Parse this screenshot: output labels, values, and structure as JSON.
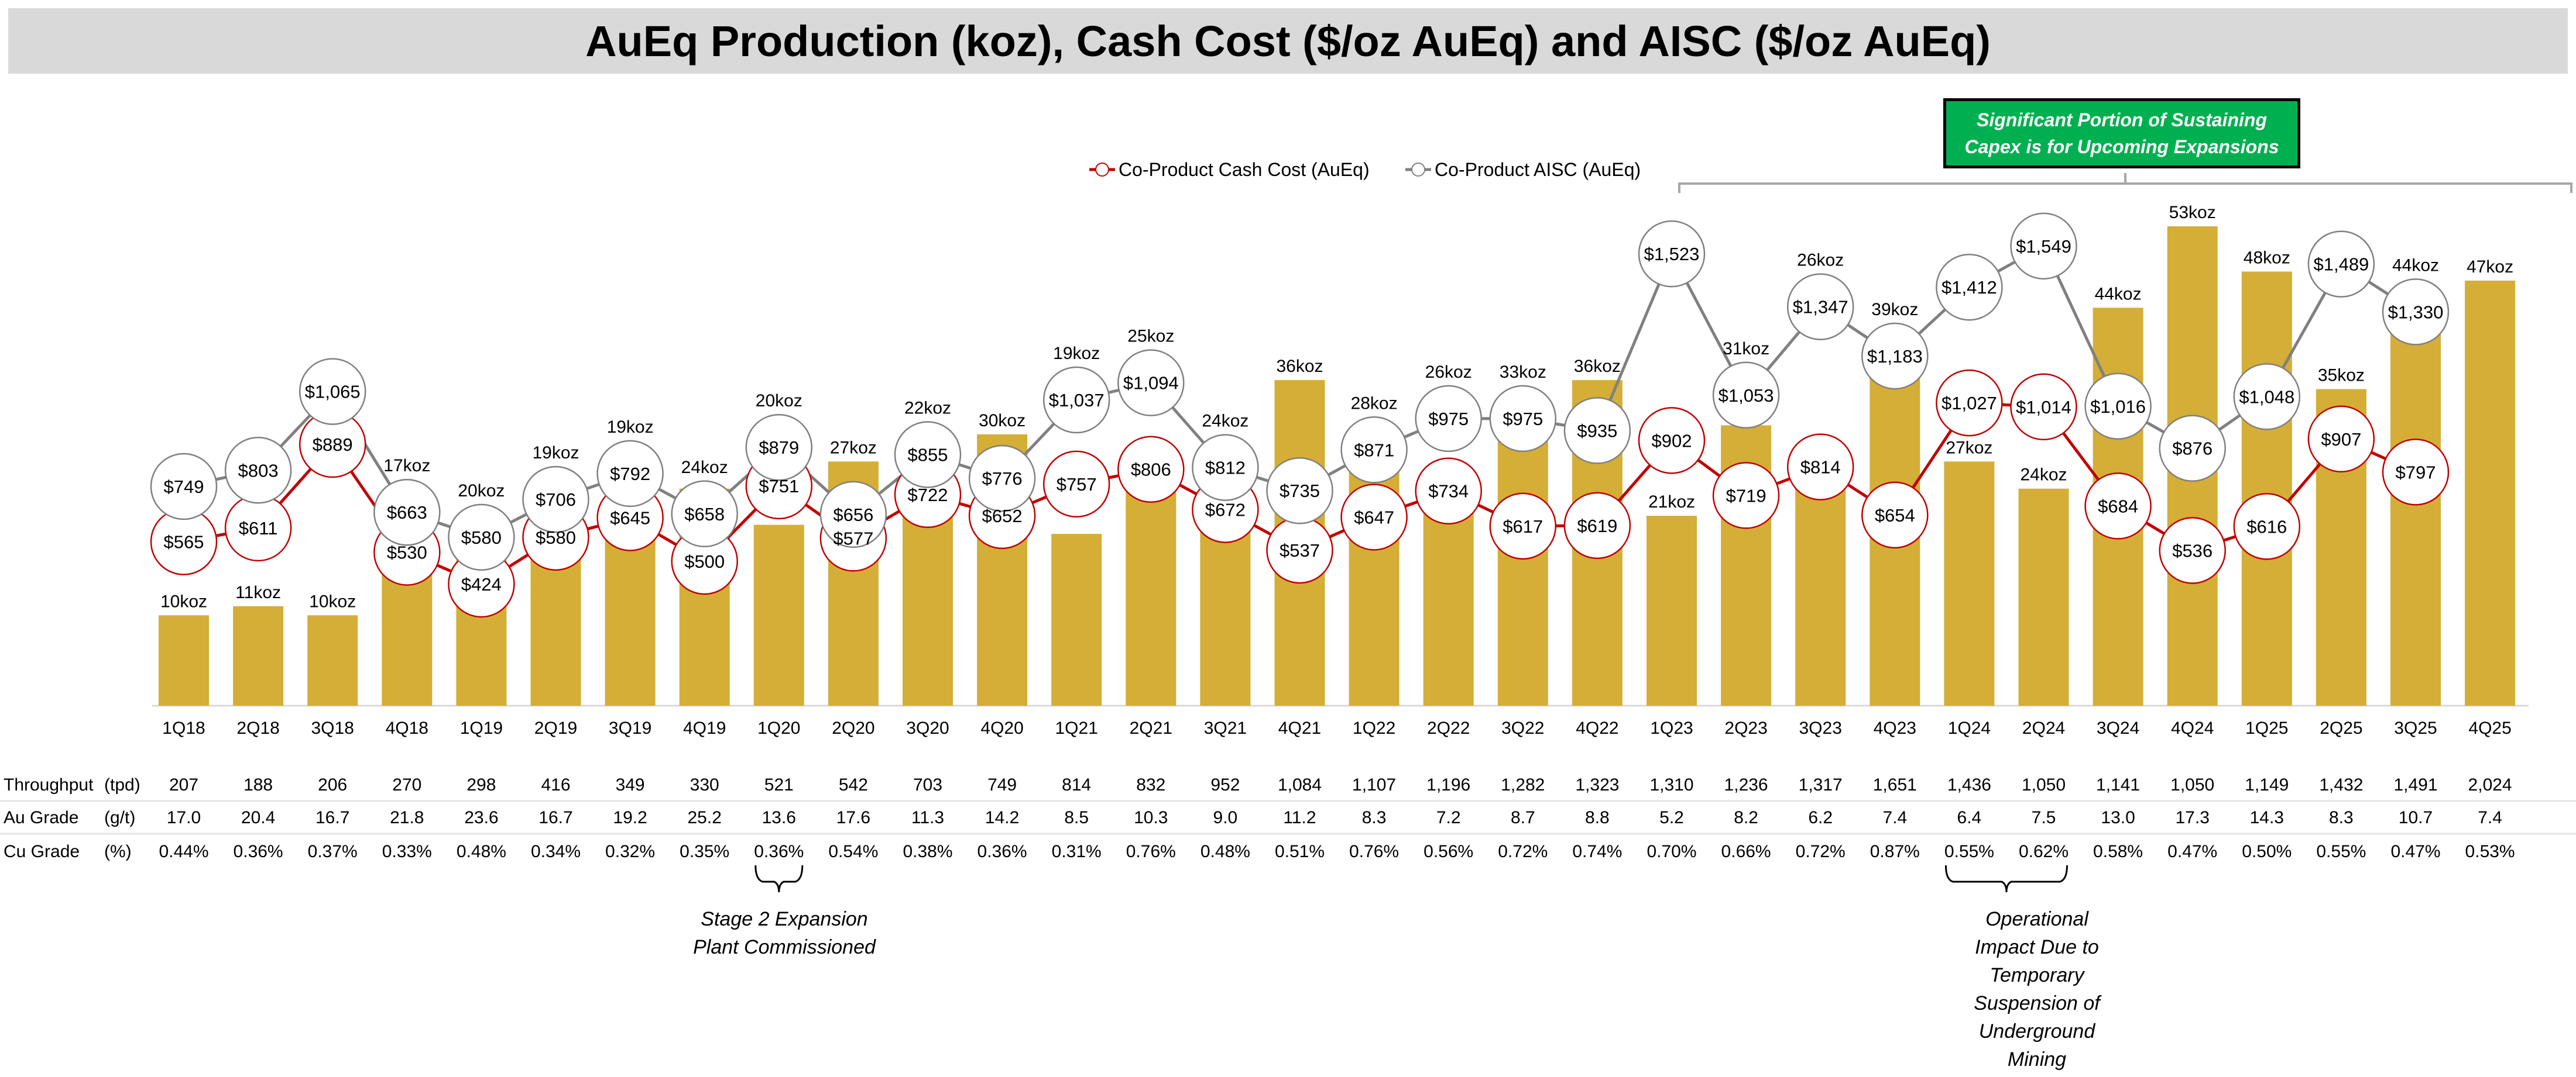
{
  "chart_data": {
    "type": "bar+line",
    "title": "AuEq Production (koz), Cash Cost ($/oz AuEq) and AISC ($/oz AuEq)",
    "categories": [
      "1Q18",
      "2Q18",
      "3Q18",
      "4Q18",
      "1Q19",
      "2Q19",
      "3Q19",
      "4Q19",
      "1Q20",
      "2Q20",
      "3Q20",
      "4Q20",
      "1Q21",
      "2Q21",
      "3Q21",
      "4Q21",
      "1Q22",
      "2Q22",
      "3Q22",
      "4Q22",
      "1Q23",
      "2Q23",
      "3Q23",
      "4Q23",
      "1Q24",
      "2Q24",
      "3Q24",
      "4Q24",
      "1Q25",
      "2Q25",
      "3Q25",
      "4Q25"
    ],
    "production_koz": [
      10,
      11,
      10,
      17,
      20,
      19,
      19,
      24,
      20,
      27,
      22,
      30,
      19,
      25,
      24,
      36,
      28,
      26,
      33,
      36,
      21,
      31,
      26,
      39,
      27,
      24,
      44,
      53,
      48,
      35,
      44,
      47
    ],
    "production_unit": "koz",
    "series": [
      {
        "name": "Co-Product Cash Cost (AuEq)",
        "color": "#c00000",
        "values": [
          565,
          611,
          889,
          530,
          424,
          580,
          645,
          500,
          751,
          577,
          722,
          652,
          757,
          806,
          672,
          537,
          647,
          734,
          617,
          619,
          902,
          719,
          814,
          654,
          1027,
          1014,
          684,
          536,
          616,
          907,
          797,
          null
        ]
      },
      {
        "name": "Co-Product AISC (AuEq)",
        "color": "#808080",
        "values": [
          749,
          803,
          1065,
          663,
          580,
          706,
          792,
          658,
          879,
          656,
          855,
          776,
          1037,
          1094,
          812,
          735,
          871,
          975,
          975,
          935,
          1523,
          1053,
          1347,
          1183,
          1412,
          1549,
          1016,
          876,
          1048,
          1489,
          1330,
          null
        ]
      }
    ],
    "bar_color": "#d4ae36",
    "legend": "top-center",
    "grid": false
  },
  "table": {
    "rows": [
      {
        "label": "Throughput",
        "unit": "(tpd)",
        "values": [
          "207",
          "188",
          "206",
          "270",
          "298",
          "416",
          "349",
          "330",
          "521",
          "542",
          "703",
          "749",
          "814",
          "832",
          "952",
          "1,084",
          "1,107",
          "1,196",
          "1,282",
          "1,323",
          "1,310",
          "1,236",
          "1,317",
          "1,651",
          "1,436",
          "1,050",
          "1,141",
          "1,050",
          "1,149",
          "1,432",
          "1,491",
          "2,024"
        ]
      },
      {
        "label": "Au Grade",
        "unit": "(g/t)",
        "values": [
          "17.0",
          "20.4",
          "16.7",
          "21.8",
          "23.6",
          "16.7",
          "19.2",
          "25.2",
          "13.6",
          "17.6",
          "11.3",
          "14.2",
          "8.5",
          "10.3",
          "9.0",
          "11.2",
          "8.3",
          "7.2",
          "8.7",
          "8.8",
          "5.2",
          "8.2",
          "6.2",
          "7.4",
          "6.4",
          "7.5",
          "13.0",
          "17.3",
          "14.3",
          "8.3",
          "10.7",
          "7.4"
        ]
      },
      {
        "label": "Cu Grade",
        "unit": "(%)",
        "values": [
          "0.44%",
          "0.36%",
          "0.37%",
          "0.33%",
          "0.48%",
          "0.34%",
          "0.32%",
          "0.35%",
          "0.36%",
          "0.54%",
          "0.38%",
          "0.36%",
          "0.31%",
          "0.76%",
          "0.48%",
          "0.51%",
          "0.76%",
          "0.56%",
          "0.72%",
          "0.74%",
          "0.70%",
          "0.66%",
          "0.72%",
          "0.87%",
          "0.55%",
          "0.62%",
          "0.58%",
          "0.47%",
          "0.50%",
          "0.55%",
          "0.47%",
          "0.53%"
        ]
      }
    ]
  },
  "annotations": {
    "stage2": [
      "Stage 2 Expansion",
      "Plant Commissioned"
    ],
    "operational": [
      "Operational",
      "Impact Due to",
      "Temporary",
      "Suspension of",
      "Underground",
      "Mining"
    ],
    "capex_line1": "Significant Portion of Sustaining",
    "capex_line2": "Capex is for Upcoming Expansions"
  }
}
